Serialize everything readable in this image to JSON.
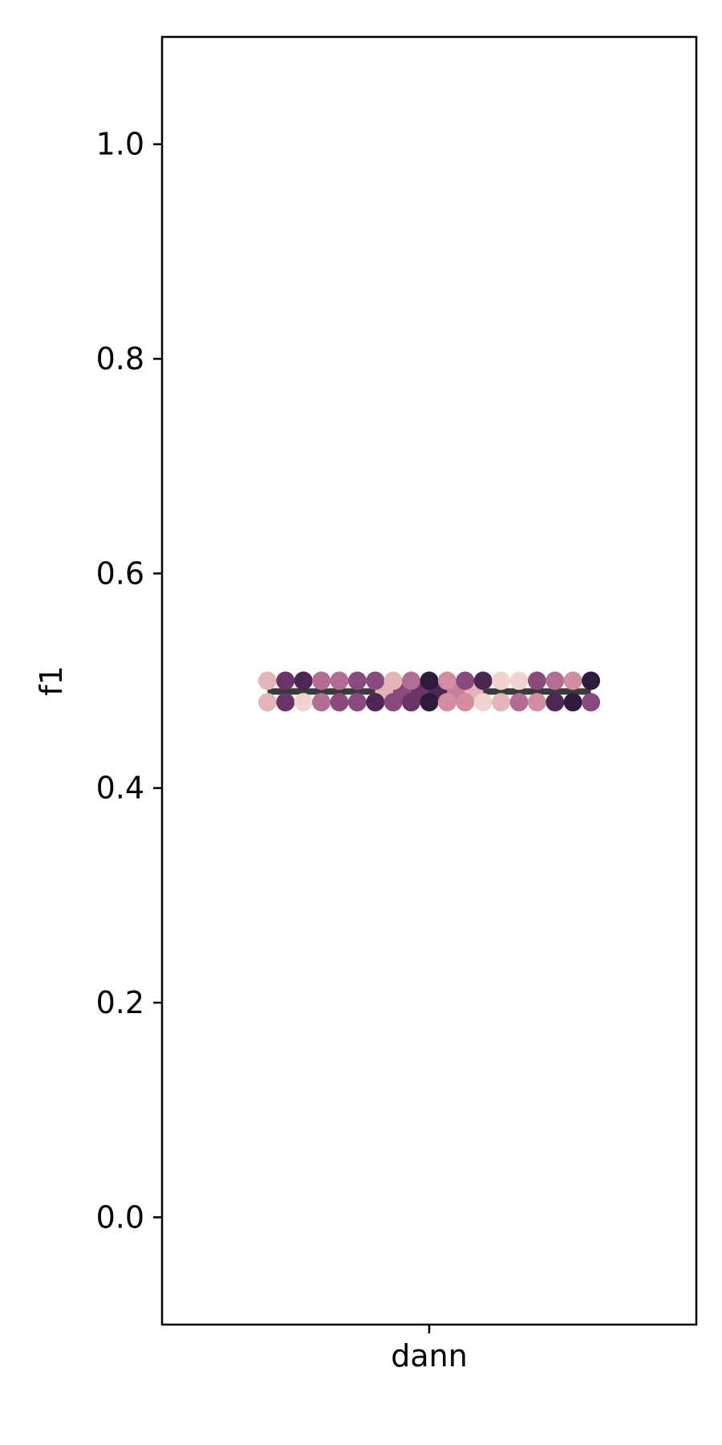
{
  "chart_data": {
    "type": "swarm",
    "title": "",
    "xlabel": "",
    "ylabel": "f1",
    "categories": [
      "dann"
    ],
    "ylim": [
      -0.1,
      1.1
    ],
    "yticks": [
      0.0,
      0.2,
      0.4,
      0.6,
      0.8,
      1.0
    ],
    "ytick_labels": [
      "0.0",
      "0.2",
      "0.4",
      "0.6",
      "0.8",
      "1.0"
    ],
    "grid": false,
    "mean_line": {
      "category": "dann",
      "value": 0.49,
      "color": "#3a3a3a"
    },
    "points": [
      {
        "category": "dann",
        "value": 0.49,
        "color": "#e3b4b8"
      },
      {
        "category": "dann",
        "value": 0.49,
        "color": "#8a4a7e"
      },
      {
        "category": "dann",
        "value": 0.49,
        "color": "#6a3468"
      },
      {
        "category": "dann",
        "value": 0.5,
        "color": "#e3b4b8"
      },
      {
        "category": "dann",
        "value": 0.48,
        "color": "#e3b4b8"
      },
      {
        "category": "dann",
        "value": 0.5,
        "color": "#6a3468"
      },
      {
        "category": "dann",
        "value": 0.48,
        "color": "#6a3468"
      },
      {
        "category": "dann",
        "value": 0.5,
        "color": "#4c2654"
      },
      {
        "category": "dann",
        "value": 0.48,
        "color": "#f0d4d0"
      },
      {
        "category": "dann",
        "value": 0.5,
        "color": "#b36c94"
      },
      {
        "category": "dann",
        "value": 0.48,
        "color": "#b36c94"
      },
      {
        "category": "dann",
        "value": 0.5,
        "color": "#b36c94"
      },
      {
        "category": "dann",
        "value": 0.48,
        "color": "#8a4a7e"
      },
      {
        "category": "dann",
        "value": 0.5,
        "color": "#8a4a7e"
      },
      {
        "category": "dann",
        "value": 0.48,
        "color": "#8a4a7e"
      },
      {
        "category": "dann",
        "value": 0.5,
        "color": "#8a4a7e"
      },
      {
        "category": "dann",
        "value": 0.48,
        "color": "#4c2654"
      },
      {
        "category": "dann",
        "value": 0.5,
        "color": "#e3b4b8"
      },
      {
        "category": "dann",
        "value": 0.48,
        "color": "#8a4a7e"
      },
      {
        "category": "dann",
        "value": 0.5,
        "color": "#b36c94"
      },
      {
        "category": "dann",
        "value": 0.48,
        "color": "#6a3468"
      },
      {
        "category": "dann",
        "value": 0.5,
        "color": "#2e1a3c"
      },
      {
        "category": "dann",
        "value": 0.48,
        "color": "#2e1a3c"
      },
      {
        "category": "dann",
        "value": 0.5,
        "color": "#d18ea2"
      },
      {
        "category": "dann",
        "value": 0.48,
        "color": "#d18ea2"
      },
      {
        "category": "dann",
        "value": 0.5,
        "color": "#8a4a7e"
      },
      {
        "category": "dann",
        "value": 0.48,
        "color": "#d18ea2"
      },
      {
        "category": "dann",
        "value": 0.5,
        "color": "#4c2654"
      },
      {
        "category": "dann",
        "value": 0.48,
        "color": "#f0d4d0"
      },
      {
        "category": "dann",
        "value": 0.5,
        "color": "#f0d4d0"
      },
      {
        "category": "dann",
        "value": 0.48,
        "color": "#e3b4b8"
      },
      {
        "category": "dann",
        "value": 0.5,
        "color": "#f0d4d0"
      },
      {
        "category": "dann",
        "value": 0.48,
        "color": "#b36c94"
      },
      {
        "category": "dann",
        "value": 0.5,
        "color": "#8a4a7e"
      },
      {
        "category": "dann",
        "value": 0.48,
        "color": "#d18ea2"
      },
      {
        "category": "dann",
        "value": 0.5,
        "color": "#b36c94"
      },
      {
        "category": "dann",
        "value": 0.48,
        "color": "#4c2654"
      },
      {
        "category": "dann",
        "value": 0.5,
        "color": "#d18ea2"
      },
      {
        "category": "dann",
        "value": 0.48,
        "color": "#2e1a3c"
      },
      {
        "category": "dann",
        "value": 0.5,
        "color": "#2e1a3c"
      },
      {
        "category": "dann",
        "value": 0.48,
        "color": "#8a4a7e"
      },
      {
        "category": "dann",
        "value": 0.49,
        "color": "#4c2654"
      },
      {
        "category": "dann",
        "value": 0.49,
        "color": "#c97f9a"
      },
      {
        "category": "dann",
        "value": 0.49,
        "color": "#e3b4b8"
      }
    ]
  }
}
